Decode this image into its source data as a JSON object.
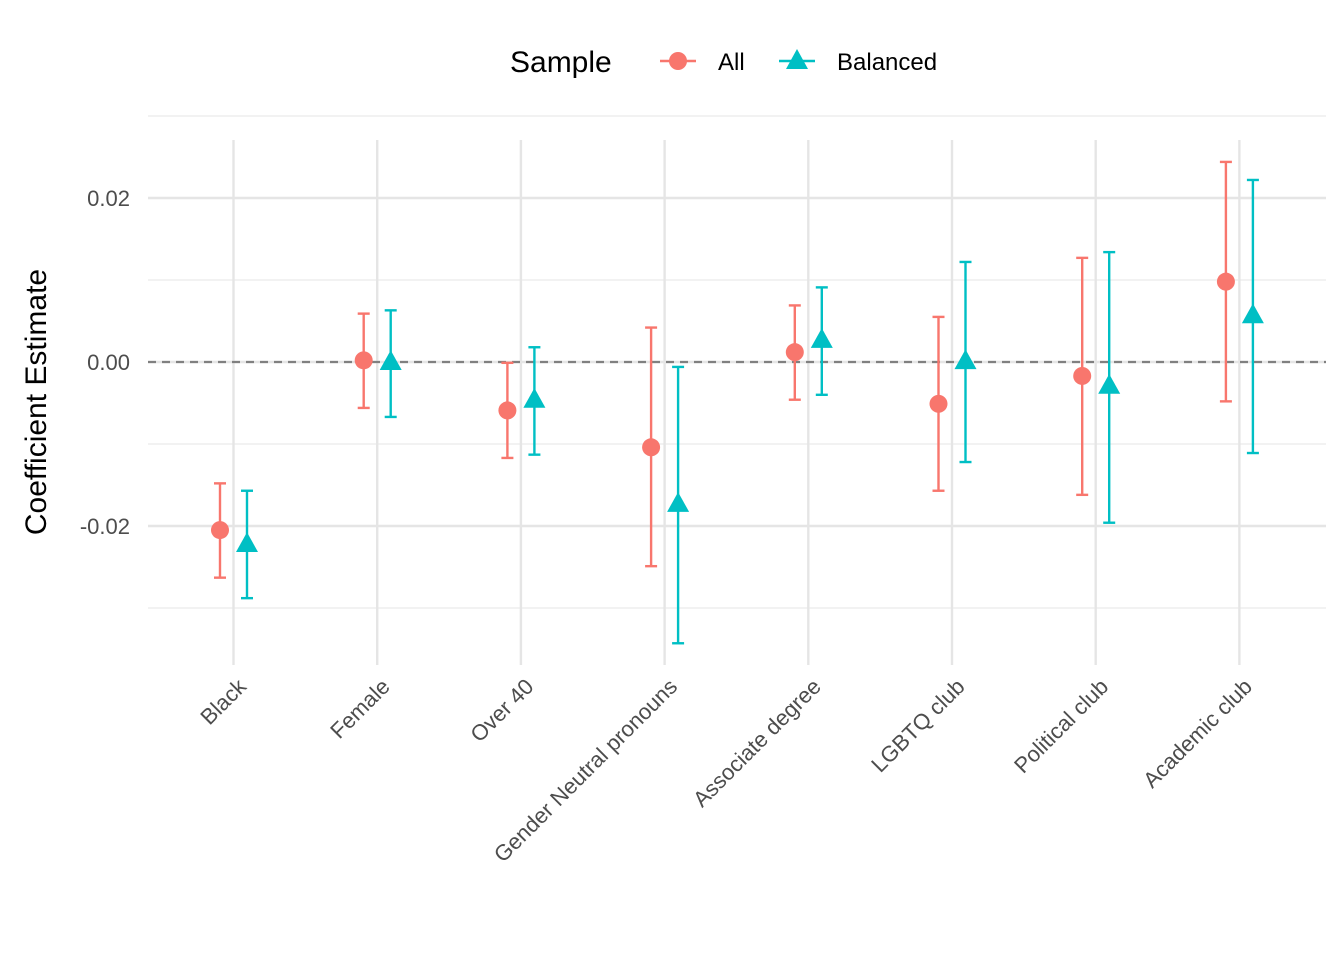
{
  "chart_data": {
    "type": "scatter",
    "subtype": "point-range",
    "title": "",
    "xlabel": "",
    "ylabel": "Coefficient Estimate",
    "ylim": [
      -0.0345,
      0.027
    ],
    "yticks": [
      0.02,
      0.0,
      -0.02
    ],
    "ytick_labels": [
      "0.02",
      "0.00",
      "-0.02"
    ],
    "reference_line": {
      "y": 0,
      "style": "dashed"
    },
    "grid": true,
    "legend": {
      "title": "Sample",
      "position": "top"
    },
    "categories": [
      "Black",
      "Female",
      "Over 40",
      "Gender Neutral pronouns",
      "Associate degree",
      "LGBTQ club",
      "Political club",
      "Academic club"
    ],
    "series": [
      {
        "name": "All",
        "marker": "circle",
        "color": "#F8766D",
        "values": [
          -0.0205,
          0.0002,
          -0.0059,
          -0.0104,
          0.0012,
          -0.0051,
          -0.0017,
          0.0098
        ],
        "lower": [
          -0.0263,
          -0.0056,
          -0.0117,
          -0.0249,
          -0.0046,
          -0.0157,
          -0.0162,
          -0.0048
        ],
        "upper": [
          -0.0148,
          0.0059,
          -0.0001,
          0.0042,
          0.0069,
          0.0055,
          0.0127,
          0.0244
        ]
      },
      {
        "name": "Balanced",
        "marker": "triangle",
        "color": "#00BFC4",
        "values": [
          -0.0222,
          0.0,
          -0.0046,
          -0.0173,
          0.0027,
          0.0001,
          -0.0029,
          0.0057
        ],
        "lower": [
          -0.0288,
          -0.0067,
          -0.0113,
          -0.0343,
          -0.004,
          -0.0122,
          -0.0196,
          -0.0111
        ],
        "upper": [
          -0.0157,
          0.0063,
          0.0018,
          -0.0006,
          0.0091,
          0.0122,
          0.0134,
          0.0222
        ]
      }
    ]
  }
}
